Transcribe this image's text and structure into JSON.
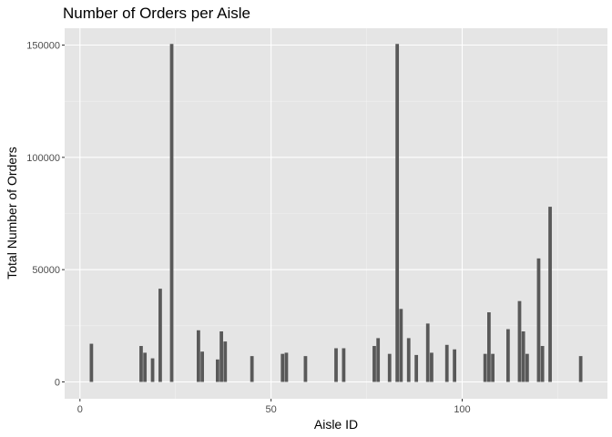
{
  "chart_data": {
    "type": "bar",
    "title": "Number of Orders per Aisle",
    "xlabel": "Aisle ID",
    "ylabel": "Total Number of Orders",
    "xlim": [
      -4,
      138
    ],
    "ylim": [
      -7500,
      157500
    ],
    "x_ticks": [
      0,
      50,
      100
    ],
    "y_ticks": [
      0,
      50000,
      100000,
      150000
    ],
    "x_tick_labels": [
      "0",
      "50",
      "100"
    ],
    "y_tick_labels": [
      "0",
      "50000",
      "100000",
      "150000"
    ],
    "grid": true,
    "panel_background": "#e5e5e5",
    "bar_color": "#595959",
    "points": [
      {
        "x": 3,
        "y": 17000
      },
      {
        "x": 16,
        "y": 16000
      },
      {
        "x": 17,
        "y": 13000
      },
      {
        "x": 19,
        "y": 10500
      },
      {
        "x": 21,
        "y": 41500
      },
      {
        "x": 24,
        "y": 150500
      },
      {
        "x": 31,
        "y": 23000
      },
      {
        "x": 32,
        "y": 13500
      },
      {
        "x": 36,
        "y": 10000
      },
      {
        "x": 37,
        "y": 22500
      },
      {
        "x": 38,
        "y": 18000
      },
      {
        "x": 45,
        "y": 11500
      },
      {
        "x": 53,
        "y": 12500
      },
      {
        "x": 54,
        "y": 13000
      },
      {
        "x": 59,
        "y": 11500
      },
      {
        "x": 67,
        "y": 15000
      },
      {
        "x": 69,
        "y": 15000
      },
      {
        "x": 77,
        "y": 16000
      },
      {
        "x": 78,
        "y": 19500
      },
      {
        "x": 81,
        "y": 12500
      },
      {
        "x": 83,
        "y": 150500
      },
      {
        "x": 84,
        "y": 32500
      },
      {
        "x": 86,
        "y": 19500
      },
      {
        "x": 88,
        "y": 12000
      },
      {
        "x": 91,
        "y": 26000
      },
      {
        "x": 92,
        "y": 13000
      },
      {
        "x": 96,
        "y": 16500
      },
      {
        "x": 98,
        "y": 14500
      },
      {
        "x": 106,
        "y": 12500
      },
      {
        "x": 107,
        "y": 31000
      },
      {
        "x": 108,
        "y": 12500
      },
      {
        "x": 112,
        "y": 23500
      },
      {
        "x": 115,
        "y": 36000
      },
      {
        "x": 116,
        "y": 22500
      },
      {
        "x": 117,
        "y": 12500
      },
      {
        "x": 120,
        "y": 55000
      },
      {
        "x": 121,
        "y": 16000
      },
      {
        "x": 123,
        "y": 78000
      },
      {
        "x": 131,
        "y": 11500
      }
    ]
  }
}
